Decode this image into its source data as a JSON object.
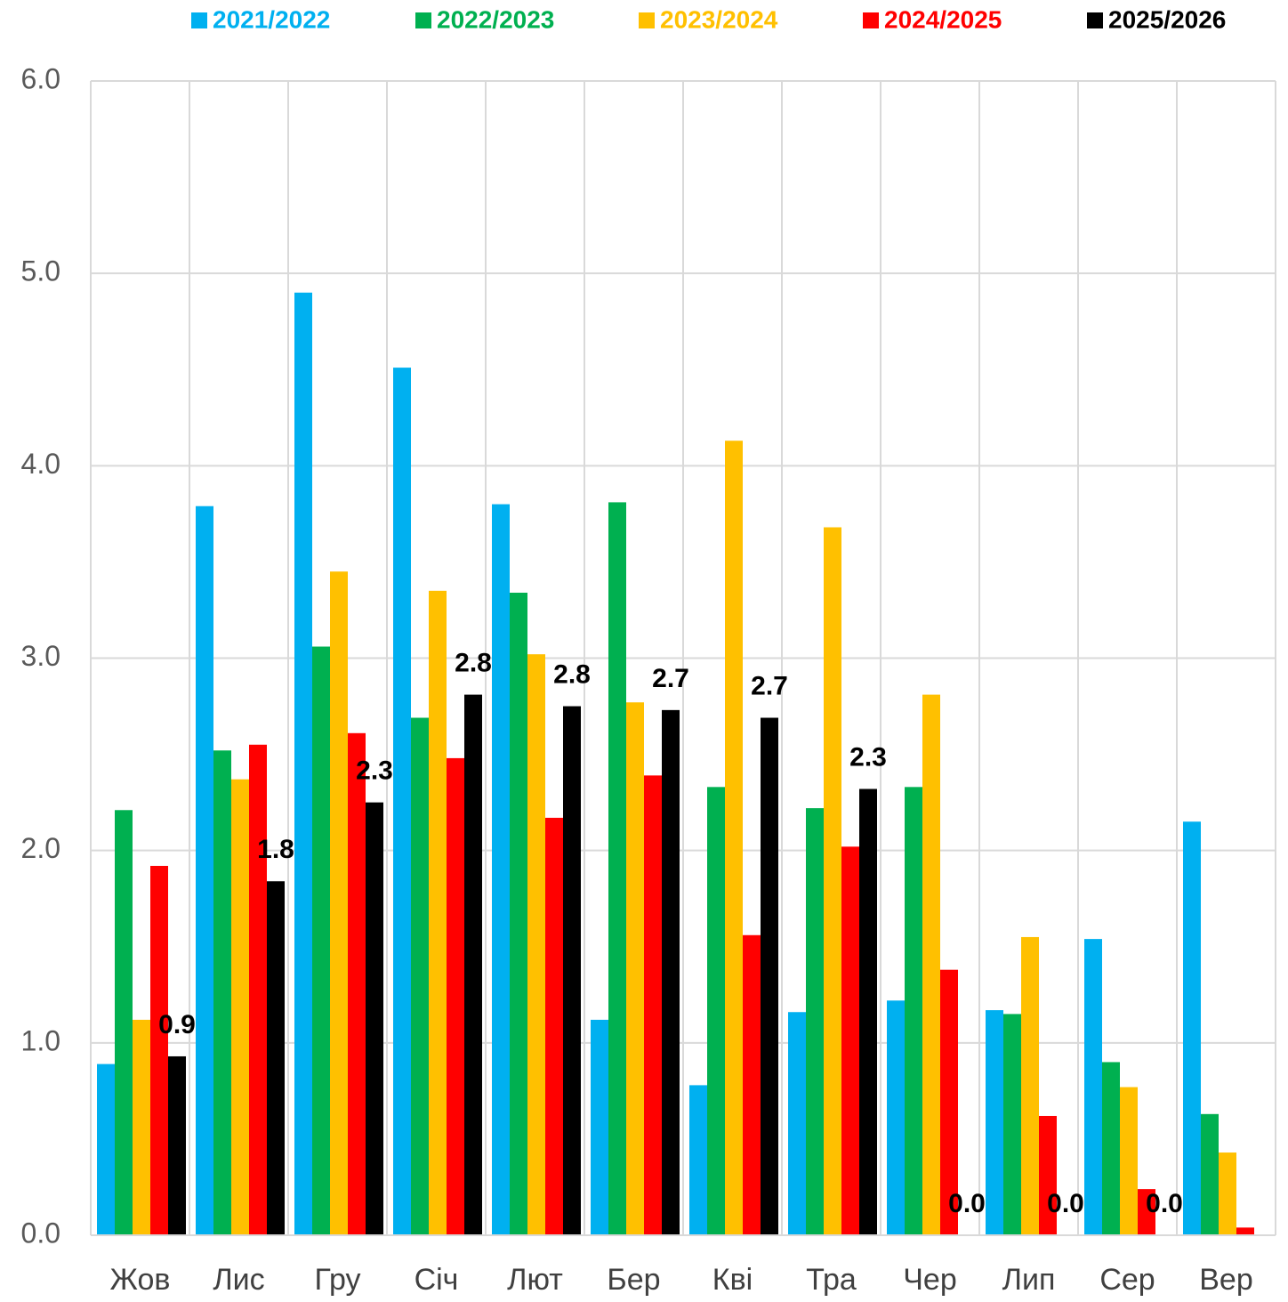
{
  "chart_data": {
    "type": "bar",
    "categories": [
      "Жов",
      "Лис",
      "Гру",
      "Січ",
      "Лют",
      "Бер",
      "Кві",
      "Тра",
      "Чер",
      "Лип",
      "Сер",
      "Вер"
    ],
    "series": [
      {
        "name": "2021/2022",
        "color": "#00b0f0",
        "values": [
          0.89,
          3.79,
          4.9,
          4.51,
          3.8,
          1.12,
          0.78,
          1.16,
          1.22,
          1.17,
          1.54,
          2.15
        ]
      },
      {
        "name": "2022/2023",
        "color": "#00b050",
        "values": [
          2.21,
          2.52,
          3.06,
          2.69,
          3.34,
          3.81,
          2.33,
          2.22,
          2.33,
          1.15,
          0.9,
          0.63
        ]
      },
      {
        "name": "2023/2024",
        "color": "#ffc000",
        "values": [
          1.12,
          2.37,
          3.45,
          3.35,
          3.02,
          2.77,
          4.13,
          3.68,
          2.81,
          1.55,
          0.77,
          0.43
        ]
      },
      {
        "name": "2024/2025",
        "color": "#ff0000",
        "values": [
          1.92,
          2.55,
          2.61,
          2.48,
          2.17,
          2.39,
          1.56,
          2.02,
          1.38,
          0.62,
          0.24,
          0.04
        ]
      },
      {
        "name": "2025/2026",
        "color": "#000000",
        "values": [
          0.93,
          1.84,
          2.25,
          2.81,
          2.75,
          2.73,
          2.69,
          2.32,
          0,
          0,
          0,
          null
        ],
        "value_labels": [
          "0.9",
          "1.8",
          "2.3",
          "2.8",
          "2.8",
          "2.7",
          "2.7",
          "2.3",
          "0.0",
          "0.0",
          "0.0",
          null
        ]
      }
    ],
    "ylim": [
      0,
      6
    ],
    "yticks": [
      {
        "value": 0,
        "label": "0.0"
      },
      {
        "value": 1,
        "label": "1.0"
      },
      {
        "value": 2,
        "label": "2.0"
      },
      {
        "value": 3,
        "label": "3.0"
      },
      {
        "value": 4,
        "label": "4.0"
      },
      {
        "value": 5,
        "label": "5.0"
      },
      {
        "value": 6,
        "label": "6.0"
      }
    ],
    "grid": true,
    "legend": "top"
  }
}
